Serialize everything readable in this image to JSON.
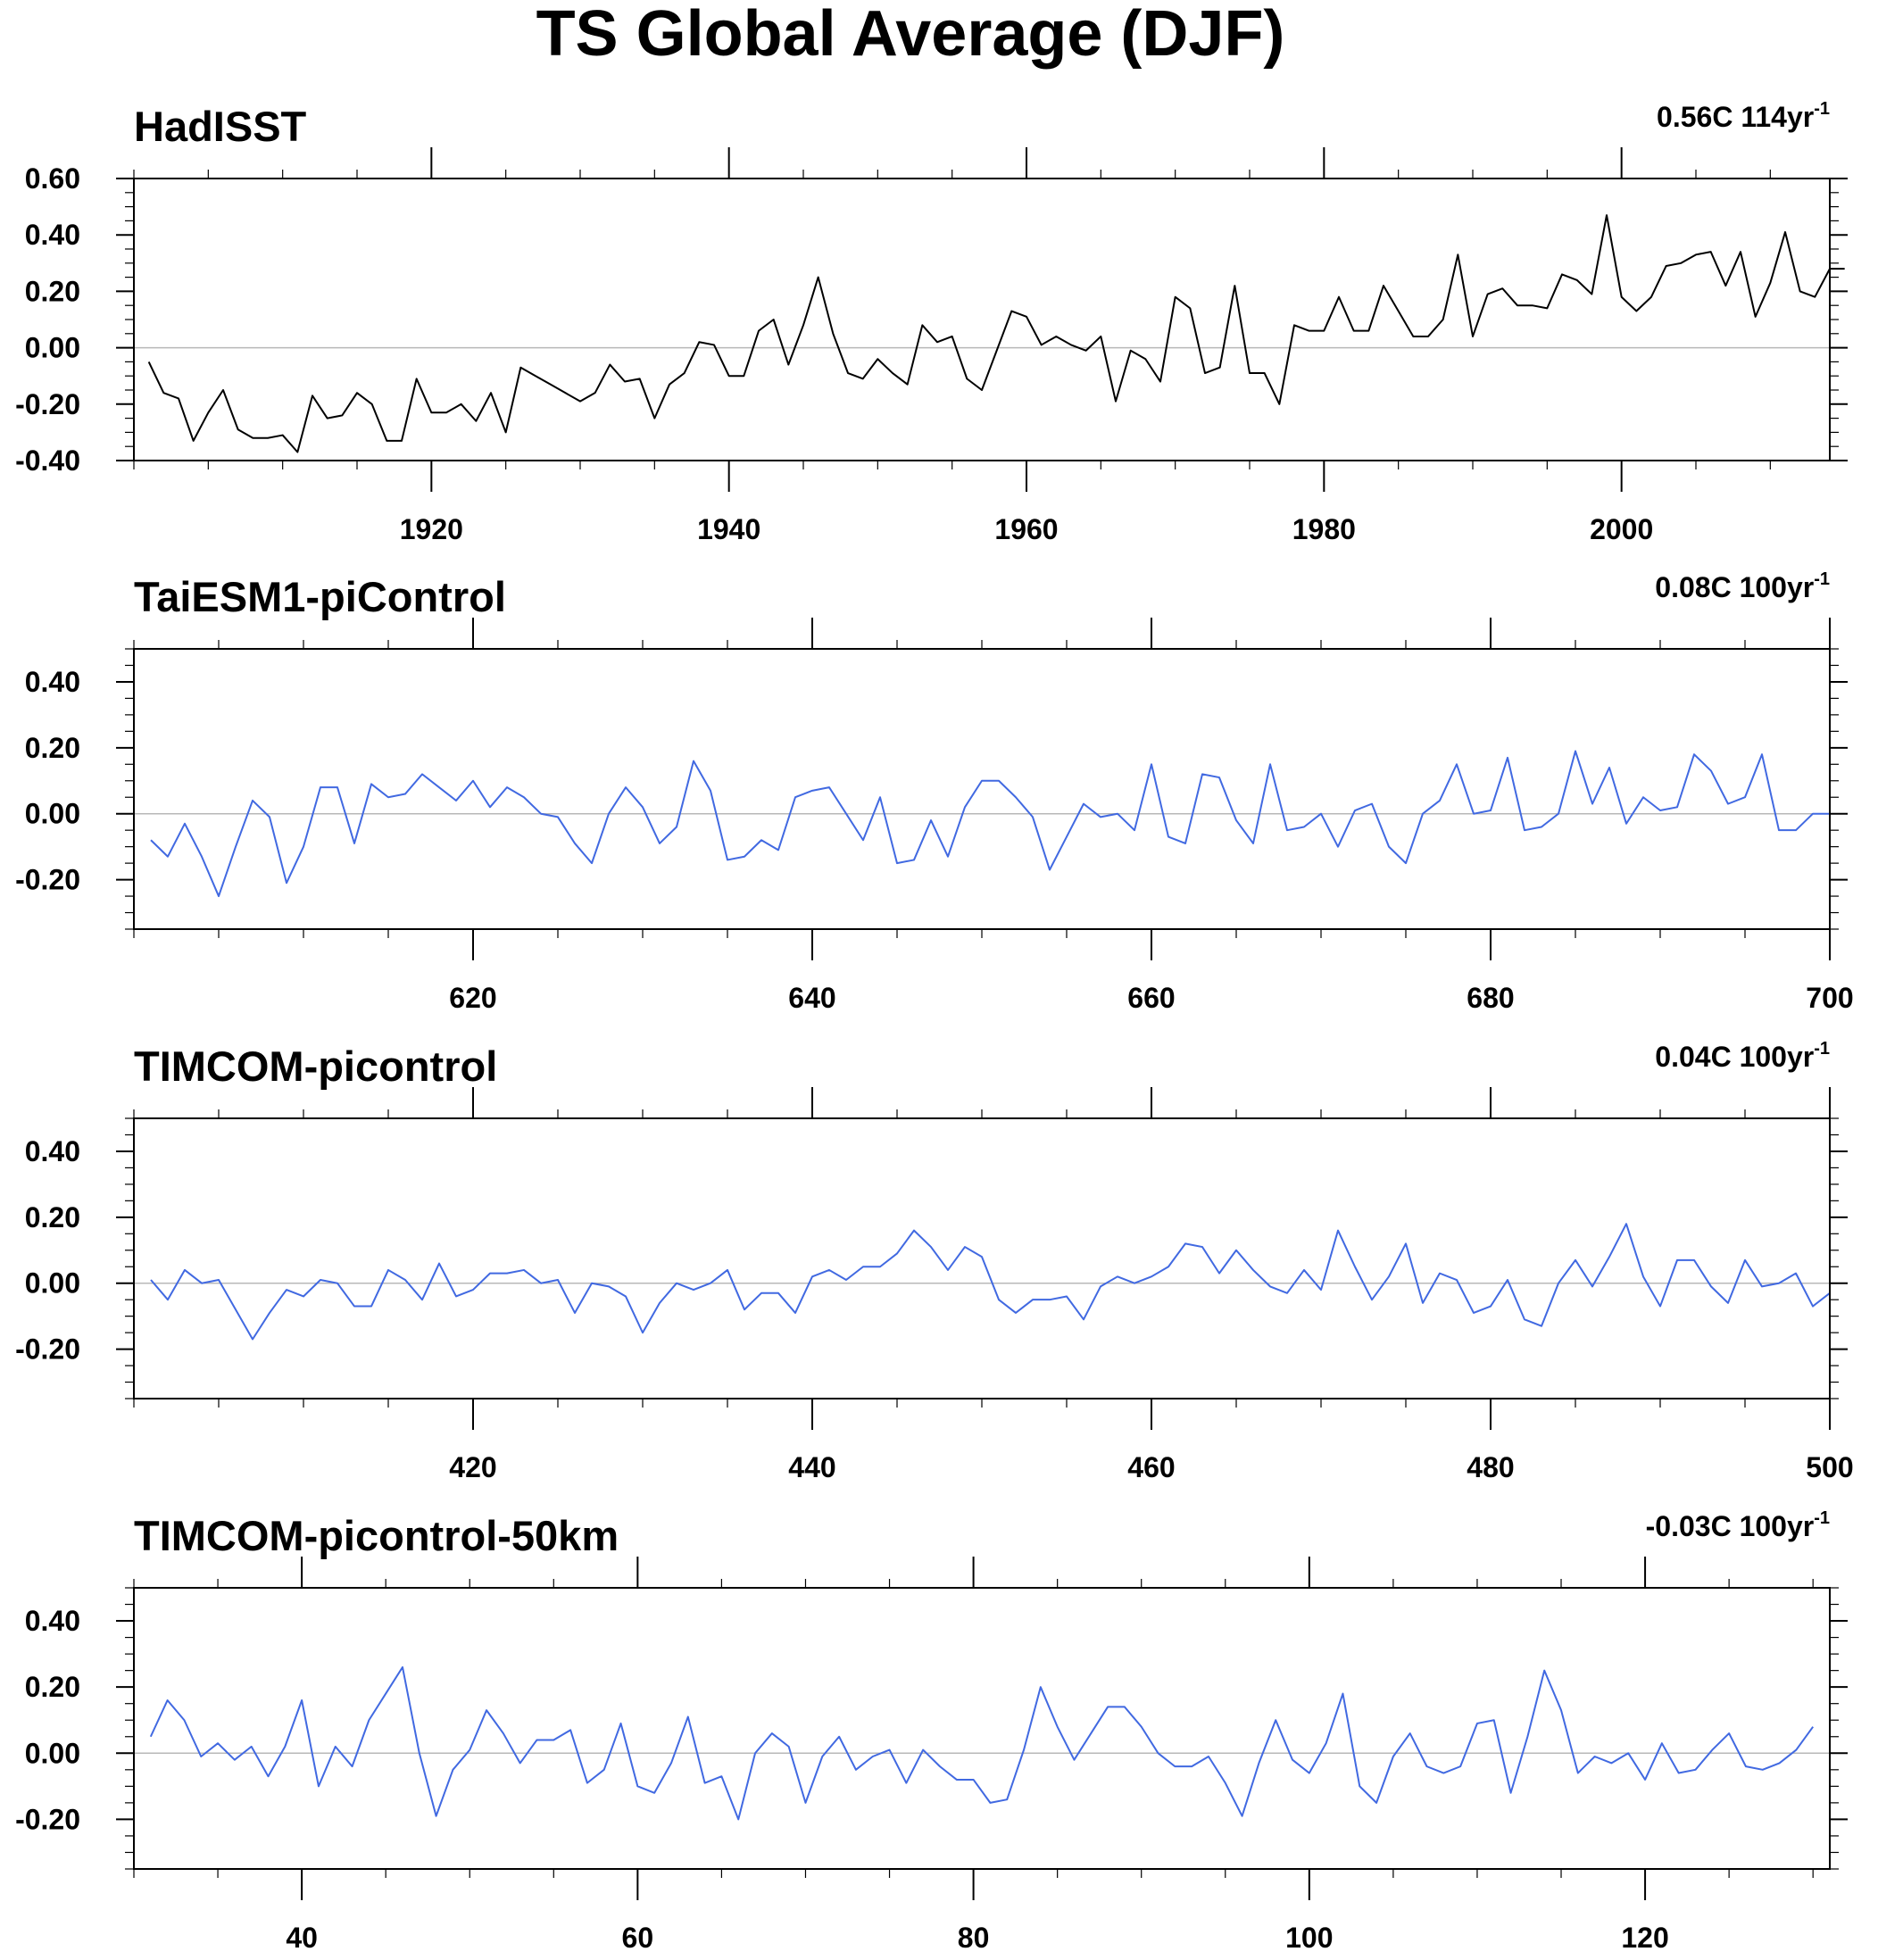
{
  "title": "TS Global Average (DJF)",
  "chart_data": [
    {
      "type": "line",
      "title": "HadISST",
      "trend_value": "0.56C 114yr",
      "trend_exp": "-1",
      "line_color": "#000000",
      "xlim": [
        1900,
        2014
      ],
      "ylim": [
        -0.4,
        0.6
      ],
      "xticks": [
        1920,
        1940,
        1960,
        1980,
        2000
      ],
      "xtick_labels": [
        "1920",
        "1940",
        "1960",
        "1980",
        "2000"
      ],
      "yticks": [
        -0.4,
        -0.2,
        0,
        0.2,
        0.4,
        0.6
      ],
      "ytick_labels": [
        "-0.40",
        "-0.20",
        "0.00",
        "0.20",
        "0.40",
        "0.60"
      ],
      "series": [
        {
          "x_start": 1901,
          "values": [
            -0.05,
            -0.16,
            -0.18,
            -0.33,
            -0.23,
            -0.15,
            -0.29,
            -0.32,
            -0.32,
            -0.31,
            -0.37,
            -0.17,
            -0.25,
            -0.24,
            -0.16,
            -0.2,
            -0.33,
            -0.33,
            -0.11,
            -0.23,
            -0.23,
            -0.2,
            -0.26,
            -0.16,
            -0.3,
            -0.07,
            -0.1,
            -0.13,
            -0.16,
            -0.19,
            -0.16,
            -0.06,
            -0.12,
            -0.11,
            -0.25,
            -0.13,
            -0.09,
            0.02,
            0.01,
            -0.1,
            -0.1,
            0.06,
            0.1,
            -0.06,
            0.08,
            0.25,
            0.05,
            -0.09,
            -0.11,
            -0.04,
            -0.09,
            -0.13,
            0.08,
            0.02,
            0.04,
            -0.11,
            -0.15,
            -0.01,
            0.13,
            0.11,
            0.01,
            0.04,
            0.01,
            -0.01,
            0.04,
            -0.19,
            -0.01,
            -0.04,
            -0.12,
            0.18,
            0.14,
            -0.09,
            -0.07,
            0.22,
            -0.09,
            -0.09,
            -0.2,
            0.08,
            0.06,
            0.06,
            0.18,
            0.06,
            0.06,
            0.22,
            0.13,
            0.04,
            0.04,
            0.1,
            0.33,
            0.04,
            0.19,
            0.21,
            0.15,
            0.15,
            0.14,
            0.26,
            0.24,
            0.19,
            0.47,
            0.18,
            0.13,
            0.18,
            0.29,
            0.3,
            0.33,
            0.34,
            0.22,
            0.34,
            0.11,
            0.23,
            0.41,
            0.2,
            0.18,
            0.28,
            0.28
          ]
        }
      ]
    },
    {
      "type": "line",
      "title": "TaiESM1-piControl",
      "trend_value": "0.08C 100yr",
      "trend_exp": "-1",
      "line_color": "#4169e1",
      "xlim": [
        600,
        700
      ],
      "ylim": [
        -0.35,
        0.5
      ],
      "xticks": [
        620,
        640,
        660,
        680,
        700
      ],
      "xtick_labels": [
        "620",
        "640",
        "660",
        "680",
        "700"
      ],
      "yticks": [
        -0.2,
        0,
        0.2,
        0.4
      ],
      "ytick_labels": [
        "-0.20",
        "0.00",
        "0.20",
        "0.40"
      ],
      "series": [
        {
          "x_start": 601,
          "values": [
            -0.08,
            -0.13,
            -0.03,
            -0.13,
            -0.25,
            -0.1,
            0.04,
            -0.01,
            -0.21,
            -0.1,
            0.08,
            0.08,
            -0.09,
            0.09,
            0.05,
            0.06,
            0.12,
            0.08,
            0.04,
            0.1,
            0.02,
            0.08,
            0.05,
            0.0,
            -0.01,
            -0.09,
            -0.15,
            0.0,
            0.08,
            0.02,
            -0.09,
            -0.04,
            0.16,
            0.07,
            -0.14,
            -0.13,
            -0.08,
            -0.11,
            0.05,
            0.07,
            0.08,
            0.0,
            -0.08,
            0.05,
            -0.15,
            -0.14,
            -0.02,
            -0.13,
            0.02,
            0.1,
            0.1,
            0.05,
            -0.01,
            -0.17,
            -0.07,
            0.03,
            -0.01,
            0.0,
            -0.05,
            0.15,
            -0.07,
            -0.09,
            0.12,
            0.11,
            -0.02,
            -0.09,
            0.15,
            -0.05,
            -0.04,
            0.0,
            -0.1,
            0.01,
            0.03,
            -0.1,
            -0.15,
            0.0,
            0.04,
            0.15,
            0.0,
            0.01,
            0.17,
            -0.05,
            -0.04,
            0.0,
            0.19,
            0.03,
            0.14,
            -0.03,
            0.05,
            0.01,
            0.02,
            0.18,
            0.13,
            0.03,
            0.05,
            0.18,
            -0.05,
            -0.05,
            0.0,
            0.0
          ]
        }
      ]
    },
    {
      "type": "line",
      "title": "TIMCOM-picontrol",
      "trend_value": "0.04C 100yr",
      "trend_exp": "-1",
      "line_color": "#4169e1",
      "xlim": [
        400,
        500
      ],
      "ylim": [
        -0.35,
        0.5
      ],
      "xticks": [
        420,
        440,
        460,
        480,
        500
      ],
      "xtick_labels": [
        "420",
        "440",
        "460",
        "480",
        "500"
      ],
      "yticks": [
        -0.2,
        0,
        0.2,
        0.4
      ],
      "ytick_labels": [
        "-0.20",
        "0.00",
        "0.20",
        "0.40"
      ],
      "series": [
        {
          "x_start": 401,
          "values": [
            0.01,
            -0.05,
            0.04,
            0.0,
            0.01,
            -0.08,
            -0.17,
            -0.09,
            -0.02,
            -0.04,
            0.01,
            0.0,
            -0.07,
            -0.07,
            0.04,
            0.01,
            -0.05,
            0.06,
            -0.04,
            -0.02,
            0.03,
            0.03,
            0.04,
            0.0,
            0.01,
            -0.09,
            0.0,
            -0.01,
            -0.04,
            -0.15,
            -0.06,
            0.0,
            -0.02,
            0.0,
            0.04,
            -0.08,
            -0.03,
            -0.03,
            -0.09,
            0.02,
            0.04,
            0.01,
            0.05,
            0.05,
            0.09,
            0.16,
            0.11,
            0.04,
            0.11,
            0.08,
            -0.05,
            -0.09,
            -0.05,
            -0.05,
            -0.04,
            -0.11,
            -0.01,
            0.02,
            0.0,
            0.02,
            0.05,
            0.12,
            0.11,
            0.03,
            0.1,
            0.04,
            -0.01,
            -0.03,
            0.04,
            -0.02,
            0.16,
            0.05,
            -0.05,
            0.02,
            0.12,
            -0.06,
            0.03,
            0.01,
            -0.09,
            -0.07,
            0.01,
            -0.11,
            -0.13,
            0.0,
            0.07,
            -0.01,
            0.08,
            0.18,
            0.02,
            -0.07,
            0.07,
            0.07,
            -0.01,
            -0.06,
            0.07,
            -0.01,
            0.0,
            0.03,
            -0.07,
            -0.03
          ]
        }
      ]
    },
    {
      "type": "line",
      "title": "TIMCOM-picontrol-50km",
      "trend_value": "-0.03C 100yr",
      "trend_exp": "-1",
      "line_color": "#4169e1",
      "xlim": [
        30,
        131
      ],
      "ylim": [
        -0.35,
        0.5
      ],
      "xticks": [
        40,
        60,
        80,
        100,
        120
      ],
      "xtick_labels": [
        "40",
        "60",
        "80",
        "100",
        "120"
      ],
      "yticks": [
        -0.2,
        0,
        0.2,
        0.4
      ],
      "ytick_labels": [
        "-0.20",
        "0.00",
        "0.20",
        "0.40"
      ],
      "series": [
        {
          "x_start": 31,
          "values": [
            0.05,
            0.16,
            0.1,
            -0.01,
            0.03,
            -0.02,
            0.02,
            -0.07,
            0.02,
            0.16,
            -0.1,
            0.02,
            -0.04,
            0.1,
            0.18,
            0.26,
            0.0,
            -0.19,
            -0.05,
            0.01,
            0.13,
            0.06,
            -0.03,
            0.04,
            0.04,
            0.07,
            -0.09,
            -0.05,
            0.09,
            -0.1,
            -0.12,
            -0.03,
            0.11,
            -0.09,
            -0.07,
            -0.2,
            0.0,
            0.06,
            0.02,
            -0.15,
            -0.01,
            0.05,
            -0.05,
            -0.01,
            0.01,
            -0.09,
            0.01,
            -0.04,
            -0.08,
            -0.08,
            -0.15,
            -0.14,
            0.01,
            0.2,
            0.08,
            -0.02,
            0.06,
            0.14,
            0.14,
            0.08,
            0.0,
            -0.04,
            -0.04,
            -0.01,
            -0.09,
            -0.19,
            -0.03,
            0.1,
            -0.02,
            -0.06,
            0.03,
            0.18,
            -0.1,
            -0.15,
            -0.01,
            0.06,
            -0.04,
            -0.06,
            -0.04,
            0.09,
            0.1,
            -0.12,
            0.05,
            0.25,
            0.13,
            -0.06,
            -0.01,
            -0.03,
            0.0,
            -0.08,
            0.03,
            -0.06,
            -0.05,
            0.01,
            0.06,
            -0.04,
            -0.05,
            -0.03,
            0.01,
            0.08
          ]
        }
      ]
    }
  ]
}
